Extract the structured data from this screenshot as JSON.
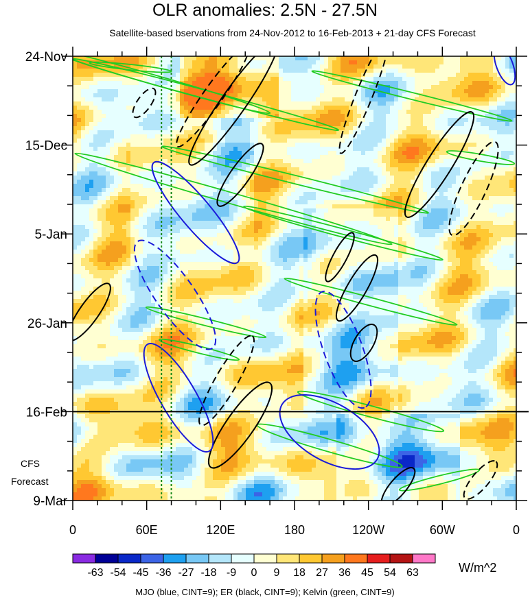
{
  "chart_data": {
    "type": "heatmap",
    "title": "OLR anomalies: 2.5N - 27.5N",
    "subtitle": "Satellite-based bservations from 24-Nov-2012 to 16-Feb-2013 + 21-day CFS Forecast",
    "x_ticks": [
      "0",
      "60E",
      "120E",
      "180",
      "120W",
      "60W",
      "0"
    ],
    "x_range_deg": [
      0,
      360
    ],
    "y_ticks": [
      "24-Nov",
      "15-Dec",
      "5-Jan",
      "26-Jan",
      "16-Feb",
      "9-Mar"
    ],
    "y_range_days": [
      0,
      105
    ],
    "obs_end_day": 84,
    "forecast_label_line1": "CFS",
    "forecast_label_line2": "Forecast",
    "reference_lines_deg": [
      72,
      80
    ],
    "colorbar": {
      "levels": [
        "-63",
        "-54",
        "-45",
        "-36",
        "-27",
        "-18",
        "-9",
        "0",
        "9",
        "18",
        "27",
        "36",
        "45",
        "54",
        "63"
      ],
      "colors": [
        "#8a2be2",
        "#000096",
        "#0a28c8",
        "#3c64e6",
        "#1ea0f0",
        "#78c8f5",
        "#b4e6fa",
        "#e6ffff",
        "#ffffd2",
        "#ffe678",
        "#ffc832",
        "#f5a01e",
        "#ff781e",
        "#e61e1e",
        "#b41414",
        "#ff78c8"
      ],
      "units": "W/m^2"
    },
    "legend_text": "MJO (blue, CINT=9); ER (black, CINT=9); Kelvin (green, CINT=9)",
    "contour_colors": {
      "mjo": "#1a1ad9",
      "er": "#000000",
      "kelvin": "#22cc22",
      "ref_lines": "#1a8a1a"
    }
  }
}
